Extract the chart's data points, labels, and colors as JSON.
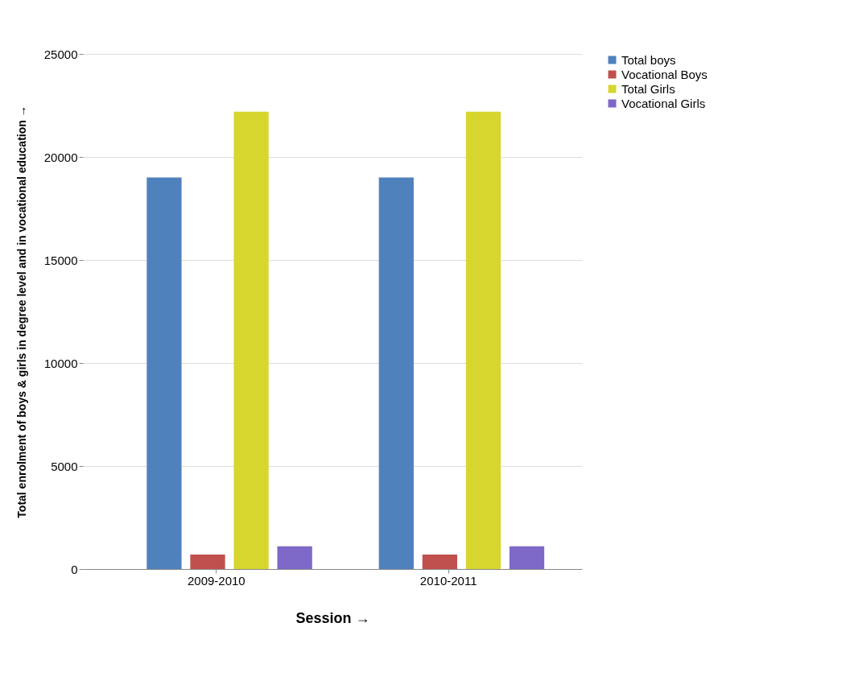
{
  "chart_data": {
    "type": "bar",
    "xlabel": "Session →",
    "ylabel": "Total enrolment of boys & girls in degree level and in vocational education →",
    "categories": [
      "2009-2010",
      "2010-2011"
    ],
    "series": [
      {
        "name": "Total boys",
        "color": "#4f81bd",
        "values": [
          19000,
          19000
        ]
      },
      {
        "name": "Vocational Boys",
        "color": "#c0504d",
        "values": [
          700,
          700
        ]
      },
      {
        "name": "Total Girls",
        "color": "#d6d62e",
        "values": [
          22200,
          22200
        ]
      },
      {
        "name": "Vocational Girls",
        "color": "#7e68c8",
        "values": [
          1100,
          1100
        ]
      }
    ],
    "ylim": [
      0,
      25000
    ],
    "yticks": [
      0,
      5000,
      10000,
      15000,
      20000,
      25000
    ],
    "grid": "y",
    "legend": "right"
  }
}
